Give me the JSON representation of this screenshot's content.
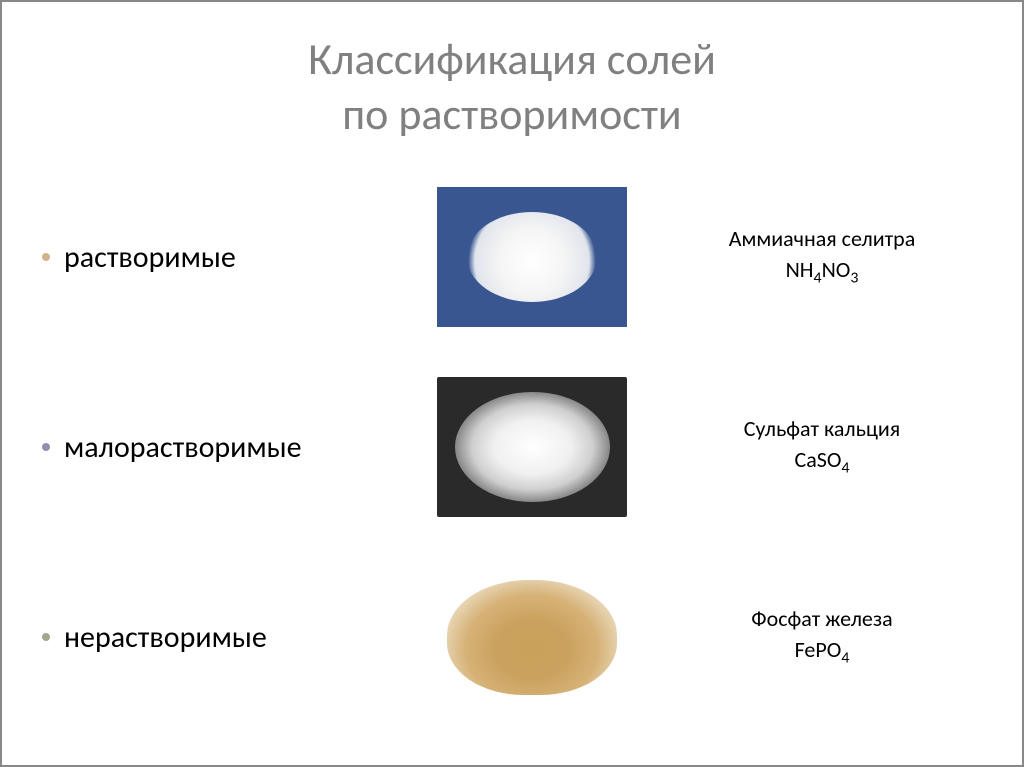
{
  "title": {
    "line1": "Классификация солей",
    "line2": "по растворимости",
    "color": "#808080",
    "fontsize": 44
  },
  "rows": [
    {
      "bullet_text": "растворимые",
      "bullet_color": "#d2b48c",
      "label_line1": "Аммиачная селитра",
      "label_line2": "NH",
      "label_sub1": "4",
      "label_mid": "NO",
      "label_sub2": "3",
      "image": {
        "desc": "white-granules-on-blue",
        "bg": "#3a5691",
        "pile": "#ffffff"
      }
    },
    {
      "bullet_text": "малорастворимые",
      "bullet_color": "#9090b0",
      "label_line1": "Сульфат кальция",
      "label_line2": "CaSO",
      "label_sub1": "4",
      "label_mid": "",
      "label_sub2": "",
      "image": {
        "desc": "white-powder-in-dish",
        "bg": "#2a2a2a",
        "dish": "#cfcfcf"
      }
    },
    {
      "bullet_text": "нерастворимые",
      "bullet_color": "#a0a890",
      "label_line1": "Фосфат железа",
      "label_line2": "FePO",
      "label_sub1": "4",
      "label_mid": "",
      "label_sub2": "",
      "image": {
        "desc": "tan-powder-pile",
        "bg": "#ffffff",
        "pile": "#c9a15b"
      }
    }
  ],
  "styling": {
    "body_bg": "#ffffff",
    "border_color": "#888888",
    "bullet_fontsize": 30,
    "label_fontsize": 22,
    "label_color": "#000000"
  }
}
